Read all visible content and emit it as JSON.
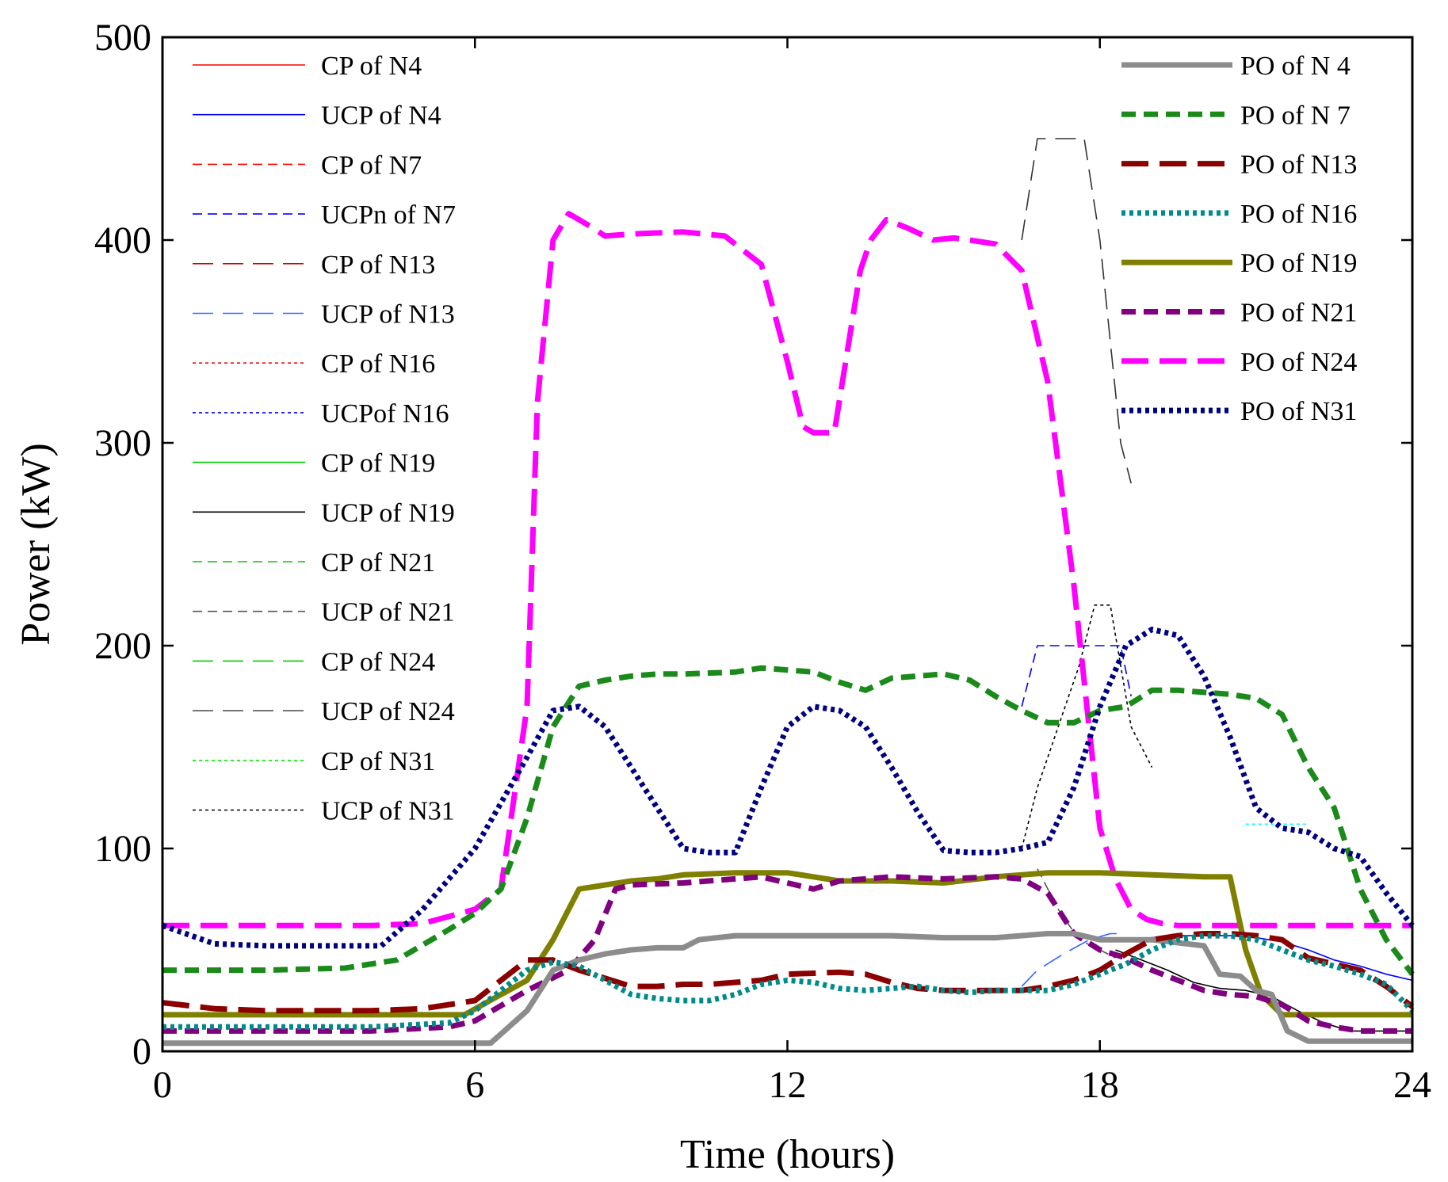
{
  "chart_data": {
    "type": "line",
    "title": "",
    "xlabel": "Time (hours)",
    "ylabel": "Power (kW)",
    "xlim": [
      0,
      24
    ],
    "ylim": [
      0,
      500
    ],
    "xticks": [
      0,
      6,
      12,
      18,
      24
    ],
    "yticks": [
      0,
      100,
      200,
      300,
      400,
      500
    ],
    "grid": false,
    "legend_left": [
      {
        "label": "CP of N4",
        "color": "#ff0000",
        "style": "solid",
        "weight": "thin"
      },
      {
        "label": "UCP of N4",
        "color": "#0000ff",
        "style": "solid",
        "weight": "thin"
      },
      {
        "label": "CP of N7",
        "color": "#ff0000",
        "style": "dash",
        "weight": "thin"
      },
      {
        "label": "UCPn of N7",
        "color": "#0000ff",
        "style": "dash",
        "weight": "thin"
      },
      {
        "label": "CP of N13",
        "color": "#cc0000",
        "style": "longdash",
        "weight": "thin"
      },
      {
        "label": "UCP of N13",
        "color": "#3366ff",
        "style": "longdash",
        "weight": "thin"
      },
      {
        "label": "CP of N16",
        "color": "#ff0000",
        "style": "dot",
        "weight": "thin"
      },
      {
        "label": "UCPof N16",
        "color": "#0000ff",
        "style": "dot",
        "weight": "thin"
      },
      {
        "label": "CP of N19",
        "color": "#00cc00",
        "style": "solid",
        "weight": "thin"
      },
      {
        "label": "UCP of N19",
        "color": "#000000",
        "style": "solid",
        "weight": "thin"
      },
      {
        "label": "CP of N21",
        "color": "#00cc00",
        "style": "dash",
        "weight": "thin"
      },
      {
        "label": "UCP of N21",
        "color": "#555555",
        "style": "dash",
        "weight": "thin"
      },
      {
        "label": "CP of N24",
        "color": "#00cc00",
        "style": "longdash",
        "weight": "thin"
      },
      {
        "label": "UCP of N24",
        "color": "#555555",
        "style": "longdash",
        "weight": "thin"
      },
      {
        "label": "CP of N31",
        "color": "#00ee00",
        "style": "dot",
        "weight": "thin"
      },
      {
        "label": "UCP of N31",
        "color": "#000000",
        "style": "dot",
        "weight": "thin"
      }
    ],
    "legend_right": [
      {
        "label": "PO of N 4",
        "color": "#8c8c8c",
        "style": "solid",
        "weight": "thick"
      },
      {
        "label": "PO of N 7",
        "color": "#1a8a1a",
        "style": "dash",
        "weight": "thick"
      },
      {
        "label": "PO of N13",
        "color": "#8b0000",
        "style": "longdash",
        "weight": "thick"
      },
      {
        "label": "PO of N16",
        "color": "#008b8b",
        "style": "dot",
        "weight": "thick"
      },
      {
        "label": "PO of N19",
        "color": "#808000",
        "style": "solid",
        "weight": "thick"
      },
      {
        "label": "PO of N21",
        "color": "#800080",
        "style": "dash",
        "weight": "thick"
      },
      {
        "label": "PO of N24",
        "color": "#ff00ff",
        "style": "longdash",
        "weight": "thick"
      },
      {
        "label": "PO of N31",
        "color": "#000080",
        "style": "dot",
        "weight": "thick"
      }
    ],
    "series": [
      {
        "name": "UCP of N24",
        "color": "#333333",
        "style": "longdash",
        "weight": "thin",
        "x": [
          16.5,
          16.8,
          17.4,
          17.7,
          18.0,
          18.2,
          18.4,
          18.6
        ],
        "y": [
          400,
          450,
          450,
          450,
          400,
          350,
          300,
          280
        ]
      },
      {
        "name": "UCP of N31",
        "color": "#000000",
        "style": "dot",
        "weight": "thin",
        "x": [
          16.5,
          16.8,
          17.2,
          17.6,
          17.9,
          18.2,
          18.6,
          19.0
        ],
        "y": [
          100,
          130,
          160,
          190,
          220,
          220,
          160,
          140
        ]
      },
      {
        "name": "UCPn of N7",
        "color": "#0000ff",
        "style": "dash",
        "weight": "thin",
        "x": [
          16.5,
          16.8,
          18.4,
          18.6
        ],
        "y": [
          170,
          200,
          200,
          175
        ]
      },
      {
        "name": "UCP of N21",
        "color": "#555555",
        "style": "dash",
        "weight": "thin",
        "x": [
          16.8,
          17.2,
          17.6,
          18.0,
          18.3
        ],
        "y": [
          90,
          70,
          55,
          50,
          46
        ]
      },
      {
        "name": "UCP of N13",
        "color": "#3366ff",
        "style": "longdash",
        "weight": "thin",
        "x": [
          16.5,
          16.8,
          17.3,
          17.8,
          18.2,
          18.4
        ],
        "y": [
          32,
          40,
          48,
          55,
          58,
          58
        ]
      },
      {
        "name": "UCP of N4",
        "color": "#0000ff",
        "style": "solid",
        "weight": "thin",
        "x": [
          18.5,
          19.0,
          19.5,
          20.5,
          21.0,
          21.5,
          22.0,
          22.5,
          23.0,
          23.5,
          24.0
        ],
        "y": [
          55,
          56,
          57,
          57,
          56,
          54,
          50,
          45,
          42,
          38,
          35
        ]
      },
      {
        "name": "UCP of N19",
        "color": "#000000",
        "style": "solid",
        "weight": "thin",
        "x": [
          18.3,
          18.8,
          19.3,
          19.8,
          20.3,
          20.8,
          21.3,
          21.8,
          22.3,
          22.8,
          23.3,
          24.0
        ],
        "y": [
          50,
          45,
          40,
          34,
          31,
          30,
          27,
          20,
          14,
          10,
          10,
          10
        ]
      },
      {
        "name": "CP of N31",
        "color": "#00ffff",
        "style": "dot",
        "weight": "thin",
        "x": [
          20.8,
          22.0
        ],
        "y": [
          112,
          112
        ]
      },
      {
        "name": "PO of N24",
        "color": "#ff00ff",
        "style": "longdash",
        "weight": "thick",
        "x": [
          0,
          2,
          4,
          5,
          6,
          6.5,
          7,
          7.2,
          7.5,
          7.8,
          8.0,
          8.2,
          8.5,
          9,
          10,
          10.8,
          11.5,
          12,
          12.3,
          12.5,
          12.9,
          13.4,
          13.6,
          13.9,
          14.3,
          14.8,
          15.2,
          15.5,
          16,
          16.5,
          17,
          17.5,
          18,
          18.3,
          18.6,
          18.9,
          19.2,
          19.5,
          19.8,
          20.2,
          21,
          22,
          23,
          24
        ],
        "y": [
          62,
          62,
          62,
          63,
          70,
          80,
          170,
          320,
          400,
          413,
          410,
          407,
          402,
          403,
          404,
          402,
          388,
          340,
          308,
          305,
          305,
          385,
          400,
          410,
          406,
          400,
          401,
          400,
          398,
          385,
          330,
          230,
          110,
          85,
          70,
          65,
          63,
          62,
          62,
          62,
          62,
          62,
          62,
          62
        ]
      },
      {
        "name": "PO of N 7",
        "color": "#1a8a1a",
        "style": "dash",
        "weight": "thick",
        "x": [
          0,
          2,
          3.5,
          4.5,
          5.5,
          6,
          6.5,
          7,
          7.5,
          8,
          8.5,
          9,
          9.5,
          10,
          11,
          11.5,
          12,
          12.5,
          13,
          13.5,
          14,
          14.5,
          15,
          15.5,
          16,
          16.5,
          17,
          17.5,
          18,
          18.5,
          19,
          19.5,
          20,
          20.5,
          21,
          21.5,
          22,
          22.5,
          23,
          23.5,
          24
        ],
        "y": [
          40,
          40,
          41,
          45,
          60,
          68,
          80,
          115,
          160,
          180,
          183,
          185,
          186,
          186,
          187,
          189,
          188,
          187,
          182,
          178,
          184,
          185,
          186,
          183,
          175,
          168,
          162,
          162,
          168,
          170,
          178,
          178,
          177,
          176,
          174,
          166,
          140,
          120,
          80,
          55,
          38
        ]
      },
      {
        "name": "PO of N31",
        "color": "#000080",
        "style": "dot",
        "weight": "thick",
        "x": [
          0,
          1,
          2,
          3,
          4.2,
          5,
          6,
          7,
          7.5,
          8,
          8.5,
          9,
          9.5,
          10,
          10.5,
          11,
          11.5,
          12,
          12.5,
          13,
          13.5,
          14,
          14.5,
          15,
          15.5,
          16,
          16.5,
          17,
          17.5,
          18,
          18.5,
          19,
          19.5,
          20,
          20.5,
          21,
          21.5,
          22,
          22.5,
          23,
          23.5,
          24
        ],
        "y": [
          62,
          53,
          52,
          52,
          52,
          70,
          100,
          145,
          168,
          170,
          160,
          140,
          120,
          100,
          98,
          98,
          130,
          160,
          170,
          168,
          160,
          140,
          118,
          99,
          98,
          98,
          100,
          103,
          130,
          170,
          200,
          208,
          205,
          185,
          155,
          120,
          110,
          108,
          100,
          96,
          78,
          62
        ]
      },
      {
        "name": "PO of N19",
        "color": "#808000",
        "style": "solid",
        "weight": "thick",
        "x": [
          0,
          2,
          4,
          5.8,
          6.5,
          7,
          7.5,
          8,
          8.5,
          9,
          9.5,
          10,
          11,
          12,
          12.5,
          13,
          14,
          15,
          16,
          17,
          18,
          19,
          20,
          20.5,
          20.8,
          21.1,
          21.5,
          22,
          23,
          24
        ],
        "y": [
          18,
          18,
          18,
          18,
          28,
          35,
          55,
          80,
          82,
          84,
          85,
          87,
          88,
          88,
          86,
          84,
          84,
          83,
          86,
          88,
          88,
          87,
          86,
          86,
          50,
          28,
          18,
          18,
          18,
          18
        ]
      },
      {
        "name": "PO of N21",
        "color": "#800080",
        "style": "dash",
        "weight": "thick",
        "x": [
          0,
          2,
          4,
          5.5,
          6,
          7,
          7.8,
          8.3,
          8.7,
          9,
          10,
          11,
          11.5,
          12,
          12.5,
          13,
          14,
          15,
          16,
          16.5,
          17,
          17.5,
          18,
          18.5,
          19,
          19.5,
          20,
          20.5,
          21,
          21.5,
          22,
          22.5,
          23,
          24
        ],
        "y": [
          10,
          10,
          10,
          12,
          15,
          30,
          40,
          55,
          80,
          82,
          83,
          85,
          86,
          83,
          80,
          84,
          86,
          85,
          86,
          85,
          78,
          58,
          50,
          46,
          40,
          35,
          30,
          28,
          27,
          23,
          15,
          12,
          10,
          10
        ]
      },
      {
        "name": "PO of N 4",
        "color": "#8c8c8c",
        "style": "solid",
        "weight": "thick",
        "x": [
          0,
          2,
          4,
          6,
          6.3,
          7,
          7.5,
          8,
          8.5,
          9,
          9.5,
          10,
          10.3,
          11,
          12,
          13,
          14,
          15,
          16,
          17,
          17.5,
          18,
          19,
          20,
          20.3,
          20.7,
          21,
          21.3,
          21.6,
          22,
          23,
          24
        ],
        "y": [
          4,
          4,
          4,
          4,
          4,
          20,
          40,
          45,
          48,
          50,
          51,
          51,
          55,
          57,
          57,
          57,
          57,
          56,
          56,
          58,
          58,
          55,
          55,
          52,
          38,
          37,
          30,
          28,
          10,
          5,
          5,
          5
        ]
      },
      {
        "name": "PO of N13",
        "color": "#8b0000",
        "style": "longdash",
        "weight": "thick",
        "x": [
          0,
          1,
          2,
          3,
          4,
          5,
          6,
          6.5,
          7,
          7.5,
          8,
          8.5,
          9,
          9.5,
          10,
          10.5,
          11,
          11.5,
          12,
          13,
          13.5,
          14,
          14.5,
          15,
          16,
          16.5,
          17,
          17.5,
          18,
          18.5,
          19,
          19.5,
          20,
          20.5,
          21,
          21.5,
          22,
          22.5,
          23,
          23.5,
          24
        ],
        "y": [
          24,
          21,
          20,
          20,
          20,
          21,
          25,
          35,
          45,
          45,
          40,
          36,
          32,
          32,
          33,
          33,
          34,
          35,
          38,
          39,
          38,
          34,
          31,
          30,
          30,
          30,
          32,
          35,
          40,
          48,
          55,
          57,
          58,
          58,
          57,
          55,
          46,
          43,
          40,
          32,
          22
        ]
      },
      {
        "name": "PO of N16",
        "color": "#008b8b",
        "style": "dot",
        "weight": "thick",
        "x": [
          0,
          2,
          4,
          5.5,
          6,
          6.5,
          7,
          7.5,
          8,
          8.5,
          9,
          9.5,
          10,
          10.5,
          11,
          11.5,
          12,
          12.5,
          13,
          13.5,
          14,
          14.5,
          15,
          15.5,
          16,
          16.5,
          17,
          17.5,
          18,
          18.5,
          19,
          19.5,
          20,
          20.5,
          21,
          21.5,
          22,
          22.5,
          23,
          23.5,
          24
        ],
        "y": [
          12,
          12,
          12,
          14,
          20,
          30,
          40,
          44,
          42,
          35,
          28,
          26,
          25,
          25,
          28,
          33,
          35,
          34,
          31,
          30,
          31,
          32,
          30,
          29,
          30,
          30,
          30,
          33,
          38,
          43,
          50,
          55,
          57,
          57,
          55,
          50,
          45,
          42,
          38,
          33,
          20
        ]
      }
    ]
  }
}
